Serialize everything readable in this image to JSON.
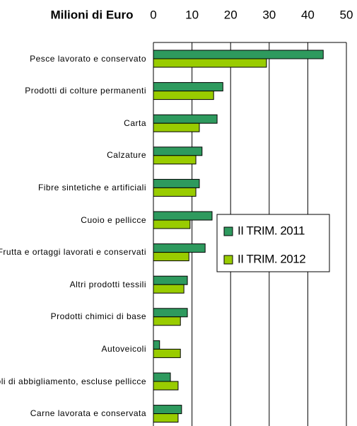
{
  "chart_data": {
    "type": "hbar",
    "title": "Milioni di Euro",
    "categories": [
      "Pesce lavorato e conservato",
      "Prodotti di colture permanenti",
      "Carta",
      "Calzature",
      "Fibre sintetiche e artificiali",
      "Cuoio e pellicce",
      "Frutta e ortaggi lavorati e conservati",
      "Altri prodotti tessili",
      "Prodotti chimici di base",
      "Autoveicoli",
      "Articoli di abbigliamento, escluse pellicce",
      "Carne lavorata e conservata"
    ],
    "series": [
      {
        "name": "II TRIM. 2011",
        "color": "#2e9a5e",
        "values": [
          44,
          18,
          16.5,
          12.6,
          11.9,
          15.2,
          13.4,
          8.8,
          8.8,
          1.6,
          4.4,
          7.3
        ]
      },
      {
        "name": "II TRIM. 2012",
        "color": "#99cc00",
        "values": [
          29.3,
          15.6,
          11.9,
          11,
          11,
          9.5,
          9.2,
          7.9,
          7,
          7,
          6.4,
          6.4
        ]
      }
    ],
    "xlim": [
      0,
      50
    ],
    "xticks": [
      0,
      10,
      20,
      30,
      40,
      50
    ],
    "grid": true
  }
}
